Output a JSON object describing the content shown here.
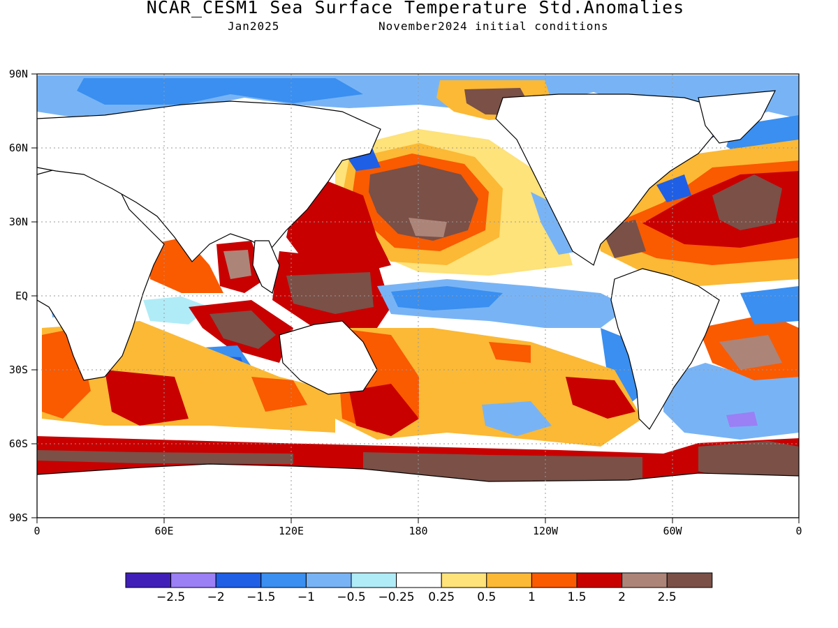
{
  "header": {
    "title": "NCAR_CESM1 Sea Surface Temperature Std.Anomalies",
    "valid_month": "Jan2025",
    "init": "November2024 initial conditions"
  },
  "axes": {
    "lat_labels": [
      "90N",
      "60N",
      "30N",
      "EQ",
      "30S",
      "60S",
      "90S"
    ],
    "lon_labels": [
      "0",
      "60E",
      "120E",
      "180",
      "120W",
      "60W",
      "0"
    ]
  },
  "colorbar": {
    "colors": [
      "#3f1fb8",
      "#9b7ff5",
      "#1e5fe6",
      "#3a8ff0",
      "#78b4f5",
      "#b0ecf8",
      "#ffffff",
      "#fee27a",
      "#fbb935",
      "#fa5a00",
      "#c80000",
      "#ad8478",
      "#7a5047"
    ],
    "labels": [
      "−2.5",
      "−2",
      "−1.5",
      "−1",
      "−0.5",
      "−0.25",
      "0.25",
      "0.5",
      "1",
      "1.5",
      "2",
      "2.5"
    ]
  }
}
